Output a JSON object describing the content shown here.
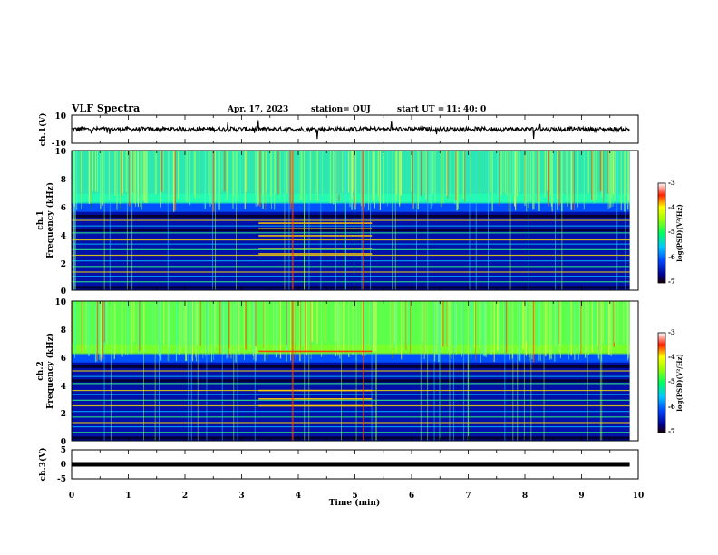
{
  "chart_data": {
    "type": "heatmap",
    "title": "VLF Spectra",
    "date": "Apr. 17, 2023",
    "station_label": "station= OUJ",
    "start_label": "start  UT  =",
    "start_time": "11: 40: 0",
    "x_axis": {
      "label": "Time  (min)",
      "range": [
        0,
        10
      ],
      "ticks": [
        "0",
        "1",
        "2",
        "3",
        "4",
        "5",
        "6",
        "7",
        "8",
        "9",
        "10"
      ]
    },
    "panels": [
      {
        "name": "ch1-waveform",
        "ylabel": "ch.1(V)",
        "ylim": [
          -10,
          10
        ],
        "ticks": [
          "10",
          "-10"
        ]
      },
      {
        "name": "ch1-spectrogram",
        "ylabel_line1": "ch.1",
        "ylabel_line2": "Frequency  (kHz)",
        "ylim": [
          0,
          10
        ],
        "ticks": [
          "10",
          "8",
          "6",
          "4",
          "2",
          "0"
        ],
        "colorbar_label": "log(PSD)(V²/Hz)",
        "colorbar_ticks": [
          "-3",
          "-4",
          "-5",
          "-6",
          "-7"
        ]
      },
      {
        "name": "ch2-spectrogram",
        "ylabel_line1": "ch.2",
        "ylabel_line2": "Frequency  (kHz)",
        "ylim": [
          0,
          10
        ],
        "ticks": [
          "10",
          "8",
          "6",
          "4",
          "2",
          "0"
        ],
        "colorbar_label": "log(PSD)(V²/Hz)",
        "colorbar_ticks": [
          "-3",
          "-4",
          "-5",
          "-6",
          "-7"
        ]
      },
      {
        "name": "ch3-waveform",
        "ylabel": "ch.3(V)",
        "ylim": [
          -5,
          5
        ],
        "ticks": [
          "5",
          "0",
          "-5"
        ]
      }
    ],
    "data_end_min": 9.85
  }
}
